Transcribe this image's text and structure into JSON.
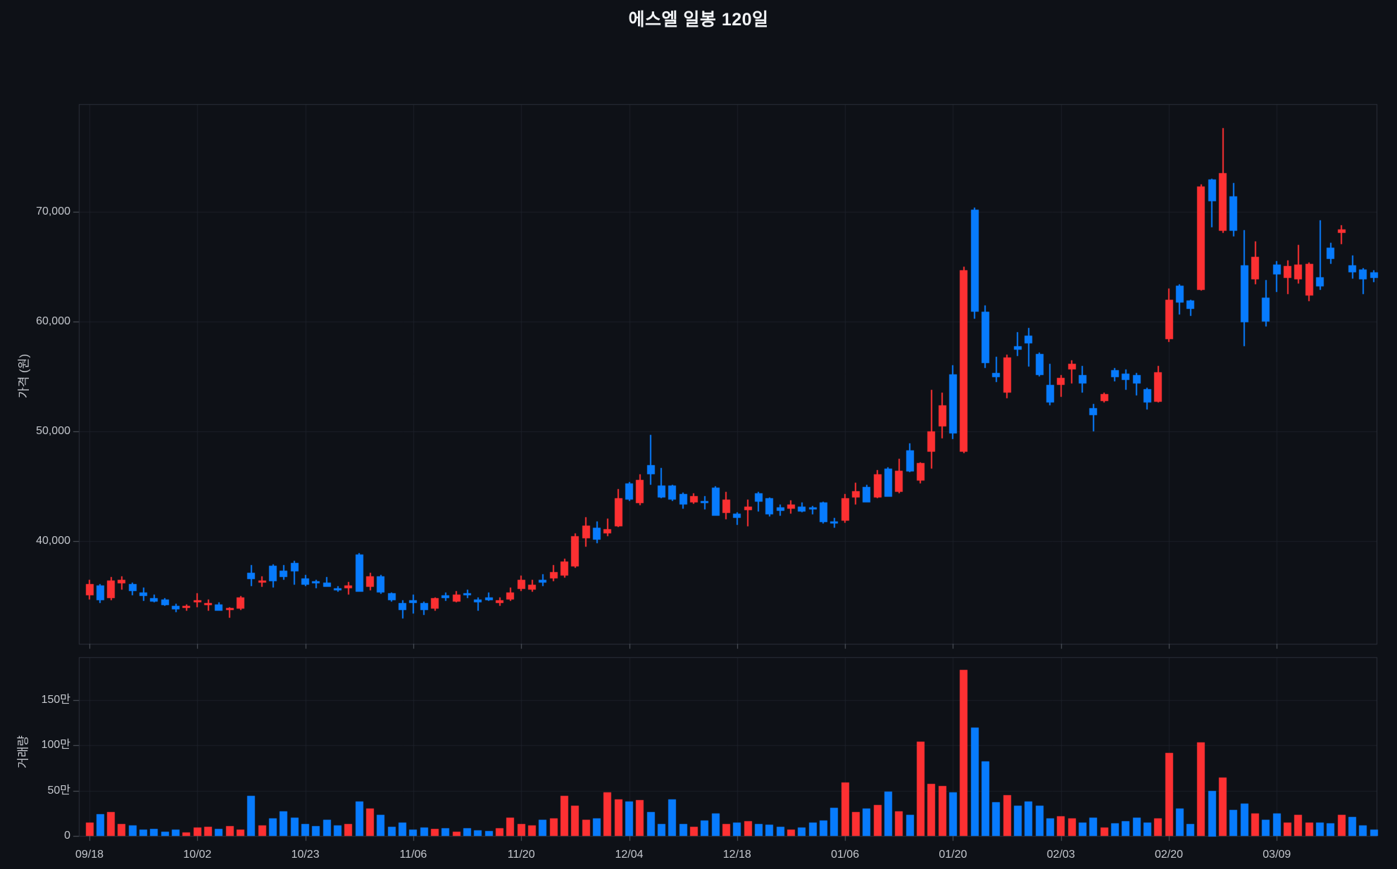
{
  "title": "에스엘 일봉 120일",
  "price_axis": {
    "label": "가격 (원)",
    "ticks": [
      {
        "value": 70000,
        "label": "70,000"
      },
      {
        "value": 60000,
        "label": "60,000"
      },
      {
        "value": 50000,
        "label": "50,000"
      },
      {
        "value": 40000,
        "label": "40,000"
      }
    ]
  },
  "volume_axis": {
    "label": "거래량",
    "ticks": [
      {
        "value": 1500000,
        "label": "150만"
      },
      {
        "value": 1000000,
        "label": "100만"
      },
      {
        "value": 500000,
        "label": "50만"
      },
      {
        "value": 0,
        "label": "0"
      }
    ]
  },
  "x_axis": {
    "tick_indices": [
      0,
      10,
      20,
      30,
      40,
      50,
      60,
      70,
      80,
      90,
      100,
      110
    ],
    "tick_labels": [
      "09/18",
      "10/02",
      "10/23",
      "11/06",
      "11/20",
      "12/04",
      "12/18",
      "01/06",
      "01/20",
      "02/03",
      "02/20",
      "03/09"
    ]
  },
  "colors": {
    "up": "#fd3032",
    "down": "#077bfd",
    "background": "#0e1117",
    "grid": "#1b1f28",
    "border": "#2b303a",
    "tick_mark": "#565b64",
    "tick_text": "#c5c8ce",
    "title_text": "#f2f4f7"
  },
  "chart_data": {
    "type": "candlestick_with_volume",
    "title": "에스엘 일봉 120일",
    "ylabel_price": "가격 (원)",
    "ylabel_volume": "거래량",
    "num_days": 120,
    "price_range_visible": [
      30650,
      79700
    ],
    "volume_range_visible": [
      0,
      1900000
    ],
    "open": [
      35050,
      35950,
      34800,
      36200,
      36100,
      35300,
      34800,
      34700,
      34100,
      33900,
      34400,
      34150,
      34250,
      33700,
      33850,
      37100,
      36200,
      37750,
      37300,
      38000,
      36600,
      36350,
      36250,
      35700,
      35700,
      38800,
      35850,
      36800,
      35250,
      34350,
      34600,
      34350,
      33850,
      35050,
      34500,
      35250,
      34700,
      34900,
      34350,
      34650,
      35600,
      35600,
      36500,
      36600,
      36850,
      37700,
      40250,
      41250,
      40700,
      41350,
      45250,
      43450,
      46950,
      45050,
      45050,
      44300,
      43550,
      43650,
      44900,
      42600,
      42500,
      42850,
      44350,
      43900,
      43050,
      42950,
      43150,
      43050,
      43500,
      41800,
      41850,
      44000,
      44950,
      44000,
      46600,
      44500,
      48250,
      45500,
      48150,
      50450,
      55200,
      48150,
      70200,
      60900,
      55300,
      53500,
      57750,
      58700,
      57050,
      54250,
      54250,
      55650,
      55100,
      52100,
      52750,
      55550,
      55250,
      55100,
      53850,
      52700,
      58400,
      63300,
      61900,
      62900,
      72950,
      68250,
      71400,
      65150,
      63850,
      62150,
      65200,
      63950,
      63850,
      62350,
      64050,
      66750,
      68100,
      65150,
      64750,
      64500
    ],
    "high": [
      36500,
      36100,
      36700,
      36800,
      36200,
      35800,
      35100,
      34800,
      34300,
      34200,
      35250,
      34700,
      34400,
      33950,
      35000,
      37800,
      36800,
      37900,
      37800,
      38200,
      36900,
      36500,
      36700,
      35900,
      36300,
      38900,
      37100,
      36900,
      35350,
      34600,
      35150,
      34500,
      34900,
      35350,
      35450,
      35550,
      34900,
      35350,
      34850,
      35750,
      36850,
      36450,
      37000,
      37850,
      38400,
      40700,
      42200,
      41800,
      42050,
      44750,
      45400,
      46100,
      49700,
      46650,
      45150,
      44400,
      44350,
      44100,
      45000,
      44500,
      42600,
      43800,
      44500,
      44000,
      43350,
      43700,
      43500,
      43200,
      43600,
      42100,
      44300,
      45300,
      45100,
      46450,
      46700,
      47500,
      48900,
      47200,
      53800,
      53500,
      56000,
      65000,
      70400,
      61500,
      56800,
      57000,
      59050,
      59400,
      57200,
      56150,
      55100,
      56500,
      55950,
      52500,
      53500,
      55800,
      55650,
      55300,
      54000,
      55950,
      63000,
      63400,
      62000,
      72500,
      73000,
      77650,
      72600,
      68350,
      67300,
      63800,
      65500,
      65600,
      67000,
      65400,
      69250,
      67200,
      68800,
      66000,
      64900,
      64700
    ],
    "low": [
      34700,
      34350,
      34600,
      35600,
      35050,
      34600,
      34400,
      34100,
      33500,
      33650,
      34000,
      33650,
      33600,
      33000,
      33700,
      35900,
      35850,
      35800,
      36450,
      36000,
      35900,
      35700,
      35800,
      35400,
      35150,
      35350,
      35500,
      35150,
      34500,
      32950,
      33400,
      33300,
      33700,
      34600,
      34400,
      34800,
      33700,
      34550,
      34100,
      34550,
      35450,
      35350,
      35900,
      36400,
      36700,
      37550,
      39500,
      39800,
      40450,
      41300,
      43650,
      43300,
      45150,
      43900,
      43700,
      42900,
      43400,
      42900,
      42300,
      42000,
      41450,
      41350,
      42700,
      42300,
      42300,
      42500,
      42600,
      42400,
      41600,
      41200,
      41700,
      43300,
      43500,
      43900,
      44000,
      44350,
      46300,
      45300,
      46650,
      49350,
      49300,
      48000,
      60300,
      55800,
      54500,
      53000,
      56900,
      55900,
      55000,
      52400,
      53100,
      54400,
      53500,
      50000,
      52600,
      54600,
      53800,
      53250,
      52000,
      52600,
      58100,
      60650,
      60500,
      62800,
      68550,
      68100,
      67700,
      57750,
      63400,
      59600,
      62700,
      62500,
      63500,
      61850,
      62900,
      65300,
      67050,
      63900,
      62500,
      63600
    ],
    "close": [
      36100,
      34600,
      36400,
      36500,
      35450,
      35000,
      34500,
      34200,
      33800,
      34100,
      34600,
      34350,
      33700,
      33900,
      34850,
      36500,
      36400,
      36350,
      36750,
      37200,
      36000,
      36150,
      35850,
      35500,
      35950,
      35400,
      36800,
      35350,
      34600,
      33700,
      34350,
      33700,
      34800,
      34800,
      35150,
      35050,
      34450,
      34650,
      34600,
      35300,
      36450,
      36050,
      36250,
      37150,
      38150,
      40450,
      41400,
      40150,
      41100,
      43900,
      43800,
      45550,
      46100,
      43950,
      43750,
      43350,
      44100,
      43450,
      42350,
      43800,
      42100,
      43150,
      43550,
      42400,
      42750,
      43350,
      42700,
      42850,
      41700,
      41600,
      43900,
      44550,
      43550,
      46100,
      44050,
      46400,
      46350,
      47100,
      50000,
      52350,
      49800,
      64700,
      60900,
      56200,
      54900,
      56700,
      57450,
      58000,
      55100,
      52650,
      54900,
      56150,
      54350,
      51450,
      53400,
      54900,
      54700,
      54350,
      52650,
      55400,
      62000,
      61750,
      61100,
      72300,
      70950,
      73500,
      68250,
      59950,
      65900,
      60000,
      64300,
      65050,
      65200,
      65250,
      63200,
      65700,
      68400,
      64500,
      63850,
      64000
    ],
    "volume": [
      150000,
      240000,
      260000,
      130000,
      120000,
      70000,
      80000,
      45000,
      70000,
      37000,
      90000,
      97000,
      76000,
      105000,
      70000,
      440000,
      120000,
      190000,
      270000,
      200000,
      130000,
      110000,
      180000,
      120000,
      130000,
      380000,
      300000,
      230000,
      100000,
      150000,
      70000,
      90000,
      80000,
      84000,
      45000,
      84000,
      63000,
      53000,
      84000,
      200000,
      130000,
      120000,
      180000,
      190000,
      445000,
      330000,
      176000,
      197000,
      484000,
      405000,
      380000,
      397000,
      260000,
      130000,
      405000,
      130000,
      97000,
      168000,
      247000,
      130000,
      150000,
      163000,
      130000,
      124000,
      100000,
      70000,
      90000,
      150000,
      168000,
      308000,
      590000,
      263000,
      300000,
      340000,
      492000,
      274000,
      230000,
      1037000,
      570000,
      550000,
      480000,
      1830000,
      1190000,
      820000,
      370000,
      450000,
      330000,
      380000,
      335000,
      190000,
      216000,
      190000,
      145000,
      200000,
      94000,
      140000,
      165000,
      200000,
      145000,
      195000,
      914000,
      305000,
      135000,
      1028000,
      500000,
      647000,
      287000,
      355000,
      249000,
      178000,
      249000,
      145000,
      236000,
      145000,
      145000,
      140000,
      230000,
      210000,
      120000,
      70000
    ]
  }
}
